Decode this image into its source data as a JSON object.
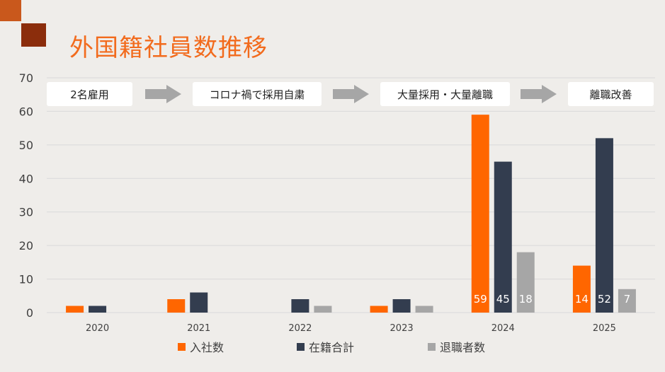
{
  "title": "外国籍社員数推移",
  "chart_data": {
    "type": "bar",
    "categories": [
      "2020",
      "2021",
      "2022",
      "2023",
      "2024",
      "2025"
    ],
    "series": [
      {
        "name": "入社数",
        "color": "#ff6600",
        "values": [
          2,
          4,
          0,
          2,
          59,
          14
        ]
      },
      {
        "name": "在籍合計",
        "color": "#333d4f",
        "values": [
          2,
          6,
          4,
          4,
          45,
          52
        ]
      },
      {
        "name": "退職者数",
        "color": "#a6a6a6",
        "values": [
          0,
          0,
          2,
          2,
          18,
          7
        ]
      }
    ],
    "ylim": [
      0,
      70
    ],
    "yticks": [
      0,
      10,
      20,
      30,
      40,
      50,
      60,
      70
    ],
    "data_labels_categories": [
      "2024",
      "2025"
    ],
    "grid": true,
    "legend": "bottom",
    "phases": [
      "2名雇用",
      "コロナ禍で採用自粛",
      "大量採用・大量離職",
      "離職改善"
    ]
  }
}
